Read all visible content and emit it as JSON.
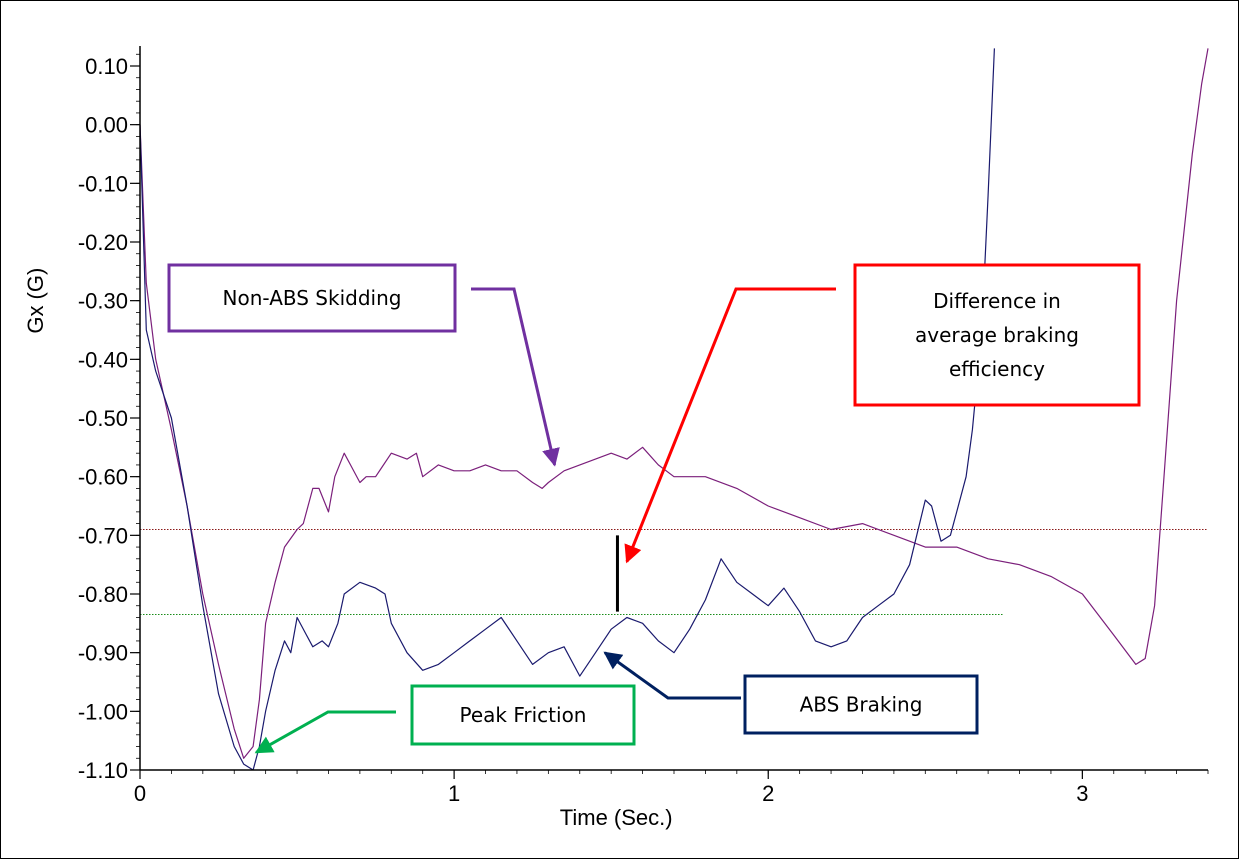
{
  "chart_data": {
    "type": "line",
    "xlabel": "Time (Sec.)",
    "ylabel": "Gx (G)",
    "xlim": [
      0,
      3.4
    ],
    "ylim": [
      -1.1,
      0.13
    ],
    "x_ticks": [
      0,
      1,
      2,
      3
    ],
    "x_tick_labels": [
      "0",
      "1",
      "2",
      "3"
    ],
    "y_ticks": [
      0.1,
      0.0,
      -0.1,
      -0.2,
      -0.3,
      -0.4,
      -0.5,
      -0.6,
      -0.7,
      -0.8,
      -0.9,
      -1.0,
      -1.1
    ],
    "y_tick_labels": [
      "0.10",
      "0.00",
      "-0.10",
      "-0.20",
      "-0.30",
      "-0.40",
      "-0.50",
      "-0.60",
      "-0.70",
      "-0.80",
      "-0.90",
      "-1.00",
      "-1.10"
    ],
    "grid": false,
    "series": [
      {
        "key": "non_abs",
        "color": "#7b1f7b",
        "x": [
          0,
          0.02,
          0.05,
          0.1,
          0.15,
          0.2,
          0.25,
          0.3,
          0.33,
          0.36,
          0.38,
          0.4,
          0.43,
          0.46,
          0.5,
          0.52,
          0.55,
          0.57,
          0.6,
          0.62,
          0.65,
          0.67,
          0.7,
          0.72,
          0.75,
          0.8,
          0.85,
          0.88,
          0.9,
          0.95,
          1.0,
          1.05,
          1.1,
          1.15,
          1.2,
          1.25,
          1.28,
          1.3,
          1.35,
          1.4,
          1.45,
          1.5,
          1.55,
          1.6,
          1.65,
          1.7,
          1.8,
          1.9,
          2.0,
          2.1,
          2.2,
          2.3,
          2.4,
          2.5,
          2.6,
          2.7,
          2.8,
          2.9,
          3.0,
          3.1,
          3.17,
          3.2,
          3.23,
          3.26,
          3.3,
          3.35,
          3.38,
          3.4
        ],
        "y": [
          0.0,
          -0.27,
          -0.4,
          -0.52,
          -0.65,
          -0.8,
          -0.92,
          -1.03,
          -1.08,
          -1.06,
          -0.98,
          -0.85,
          -0.78,
          -0.72,
          -0.69,
          -0.68,
          -0.62,
          -0.62,
          -0.66,
          -0.6,
          -0.56,
          -0.58,
          -0.61,
          -0.6,
          -0.6,
          -0.56,
          -0.57,
          -0.56,
          -0.6,
          -0.58,
          -0.59,
          -0.59,
          -0.58,
          -0.59,
          -0.59,
          -0.61,
          -0.62,
          -0.61,
          -0.59,
          -0.58,
          -0.57,
          -0.56,
          -0.57,
          -0.55,
          -0.58,
          -0.6,
          -0.6,
          -0.62,
          -0.65,
          -0.67,
          -0.69,
          -0.68,
          -0.7,
          -0.72,
          -0.72,
          -0.74,
          -0.75,
          -0.77,
          -0.8,
          -0.87,
          -0.92,
          -0.91,
          -0.82,
          -0.6,
          -0.3,
          -0.05,
          0.07,
          0.13
        ]
      },
      {
        "key": "abs",
        "color": "#1a1a6e",
        "x": [
          0,
          0.02,
          0.05,
          0.1,
          0.15,
          0.2,
          0.25,
          0.3,
          0.33,
          0.36,
          0.38,
          0.4,
          0.43,
          0.46,
          0.48,
          0.5,
          0.53,
          0.55,
          0.58,
          0.6,
          0.63,
          0.65,
          0.7,
          0.75,
          0.78,
          0.8,
          0.85,
          0.9,
          0.95,
          1.0,
          1.05,
          1.1,
          1.15,
          1.2,
          1.25,
          1.3,
          1.35,
          1.4,
          1.45,
          1.5,
          1.55,
          1.6,
          1.65,
          1.7,
          1.75,
          1.8,
          1.85,
          1.9,
          1.95,
          2.0,
          2.05,
          2.1,
          2.15,
          2.2,
          2.25,
          2.3,
          2.35,
          2.4,
          2.45,
          2.5,
          2.52,
          2.55,
          2.58,
          2.6,
          2.63,
          2.65,
          2.68,
          2.7,
          2.72
        ],
        "y": [
          0.0,
          -0.35,
          -0.42,
          -0.5,
          -0.65,
          -0.82,
          -0.97,
          -1.06,
          -1.09,
          -1.1,
          -1.06,
          -1.0,
          -0.93,
          -0.88,
          -0.9,
          -0.84,
          -0.87,
          -0.89,
          -0.88,
          -0.89,
          -0.85,
          -0.8,
          -0.78,
          -0.79,
          -0.8,
          -0.85,
          -0.9,
          -0.93,
          -0.92,
          -0.9,
          -0.88,
          -0.86,
          -0.84,
          -0.88,
          -0.92,
          -0.9,
          -0.89,
          -0.94,
          -0.9,
          -0.86,
          -0.84,
          -0.85,
          -0.88,
          -0.9,
          -0.86,
          -0.81,
          -0.74,
          -0.78,
          -0.8,
          -0.82,
          -0.79,
          -0.83,
          -0.88,
          -0.89,
          -0.88,
          -0.84,
          -0.82,
          -0.8,
          -0.75,
          -0.64,
          -0.65,
          -0.71,
          -0.7,
          -0.66,
          -0.6,
          -0.52,
          -0.35,
          -0.12,
          0.13
        ]
      }
    ],
    "reference_lines": [
      {
        "key": "non_abs_avg",
        "y": -0.69,
        "color": "#8b1a1a",
        "x_end": 3.4
      },
      {
        "key": "abs_avg",
        "y": -0.835,
        "color": "#1a8c1a",
        "x_end": 2.75
      }
    ],
    "annotations": [
      {
        "key": "non_abs",
        "lines": [
          "Non-ABS Skidding"
        ],
        "color": "#7030a0",
        "arrow_to": [
          1.32,
          -0.58
        ]
      },
      {
        "key": "difference",
        "lines": [
          "Difference in",
          "average braking",
          "efficiency"
        ],
        "color": "#ff0000",
        "arrow_to": [
          1.55,
          -0.745
        ]
      },
      {
        "key": "abs",
        "lines": [
          "ABS Braking"
        ],
        "color": "#002060",
        "arrow_to": [
          1.48,
          -0.9
        ]
      },
      {
        "key": "peak",
        "lines": [
          "Peak Friction"
        ],
        "color": "#00b050",
        "arrow_to": [
          0.37,
          -1.07
        ]
      }
    ],
    "difference_marker": {
      "x": 1.52,
      "y1": -0.7,
      "y2": -0.83,
      "color": "#000000"
    }
  }
}
